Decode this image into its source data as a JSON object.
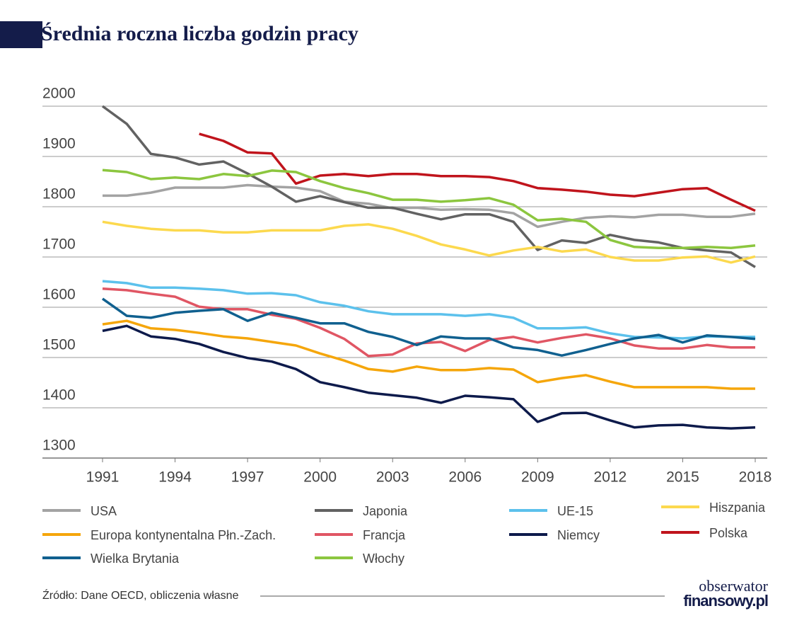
{
  "chart_data": {
    "type": "line",
    "title": "Średnia roczna liczba godzin pracy",
    "source": "Źródło: Dane OECD, obliczenia własne",
    "brand": [
      "obserwator",
      "finansowy.pl"
    ],
    "x": [
      1991,
      1992,
      1993,
      1994,
      1995,
      1996,
      1997,
      1998,
      1999,
      2000,
      2001,
      2002,
      2003,
      2004,
      2005,
      2006,
      2007,
      2008,
      2009,
      2010,
      2011,
      2012,
      2013,
      2014,
      2015,
      2016,
      2017,
      2018
    ],
    "xlim": [
      1991,
      2018
    ],
    "xticks": [
      1991,
      1994,
      1997,
      2000,
      2003,
      2006,
      2009,
      2012,
      2015,
      2018
    ],
    "ylim": [
      1300,
      2000
    ],
    "yticks": [
      1300,
      1400,
      1500,
      1600,
      1700,
      1800,
      1900,
      2000
    ],
    "grid": true,
    "series": [
      {
        "name": "USA",
        "color": "#a3a3a3",
        "values": [
          1822,
          1822,
          1828,
          1838,
          1838,
          1838,
          1843,
          1840,
          1838,
          1831,
          1810,
          1806,
          1797,
          1798,
          1794,
          1795,
          1794,
          1787,
          1760,
          1770,
          1778,
          1781,
          1779,
          1784,
          1784,
          1780,
          1780,
          1786
        ]
      },
      {
        "name": "Japonia",
        "color": "#626262",
        "values": [
          2000,
          1965,
          1905,
          1898,
          1884,
          1890,
          1866,
          1840,
          1810,
          1821,
          1809,
          1798,
          1798,
          1786,
          1775,
          1785,
          1785,
          1770,
          1714,
          1733,
          1728,
          1744,
          1734,
          1729,
          1718,
          1713,
          1709,
          1680
        ]
      },
      {
        "name": "UE-15",
        "color": "#5cc1ec",
        "values": [
          1652,
          1648,
          1639,
          1639,
          1637,
          1634,
          1627,
          1628,
          1624,
          1610,
          1603,
          1592,
          1586,
          1586,
          1586,
          1583,
          1586,
          1579,
          1558,
          1558,
          1560,
          1548,
          1541,
          1540,
          1538,
          1542,
          1541,
          1541
        ]
      },
      {
        "name": "Hiszpania",
        "color": "#fcd94e",
        "values": [
          1770,
          1762,
          1756,
          1753,
          1753,
          1749,
          1749,
          1753,
          1753,
          1753,
          1762,
          1765,
          1756,
          1742,
          1725,
          1715,
          1703,
          1713,
          1720,
          1711,
          1715,
          1700,
          1693,
          1693,
          1699,
          1701,
          1689,
          1701
        ]
      },
      {
        "name": "Europa kontynentalna Płn.-Zach.",
        "color": "#f5a60b",
        "values": [
          1566,
          1573,
          1558,
          1555,
          1549,
          1542,
          1538,
          1531,
          1524,
          1508,
          1494,
          1477,
          1472,
          1482,
          1475,
          1475,
          1479,
          1476,
          1451,
          1459,
          1465,
          1452,
          1441,
          1441,
          1441,
          1441,
          1438,
          1438
        ]
      },
      {
        "name": "Francja",
        "color": "#e05664",
        "values": [
          1637,
          1634,
          1627,
          1621,
          1601,
          1596,
          1596,
          1585,
          1577,
          1559,
          1537,
          1503,
          1506,
          1528,
          1531,
          1513,
          1535,
          1541,
          1530,
          1539,
          1546,
          1538,
          1524,
          1518,
          1518,
          1525,
          1520,
          1520
        ]
      },
      {
        "name": "Niemcy",
        "color": "#0d1a4b",
        "values": [
          1553,
          1563,
          1542,
          1537,
          1527,
          1511,
          1499,
          1492,
          1477,
          1451,
          1441,
          1430,
          1425,
          1420,
          1410,
          1424,
          1421,
          1417,
          1372,
          1389,
          1390,
          1375,
          1361,
          1365,
          1366,
          1361,
          1359,
          1361
        ]
      },
      {
        "name": "Polska",
        "color": "#c0141c",
        "values": [
          null,
          null,
          null,
          null,
          1945,
          1931,
          1908,
          1906,
          1846,
          1862,
          1865,
          1861,
          1865,
          1865,
          1861,
          1861,
          1859,
          1851,
          1837,
          1834,
          1830,
          1824,
          1821,
          1828,
          1835,
          1837,
          1814,
          1792
        ]
      },
      {
        "name": "Wielka Brytania",
        "color": "#10608f",
        "values": [
          1617,
          1583,
          1579,
          1589,
          1593,
          1596,
          1573,
          1589,
          1579,
          1568,
          1568,
          1551,
          1541,
          1525,
          1542,
          1538,
          1538,
          1520,
          1515,
          1504,
          1515,
          1527,
          1538,
          1545,
          1530,
          1544,
          1541,
          1537
        ]
      },
      {
        "name": "Włochy",
        "color": "#8cc63f",
        "values": [
          1873,
          1869,
          1855,
          1858,
          1855,
          1865,
          1861,
          1872,
          1869,
          1851,
          1837,
          1827,
          1814,
          1814,
          1810,
          1813,
          1817,
          1804,
          1773,
          1776,
          1770,
          1734,
          1720,
          1718,
          1718,
          1720,
          1718,
          1723
        ]
      }
    ]
  }
}
